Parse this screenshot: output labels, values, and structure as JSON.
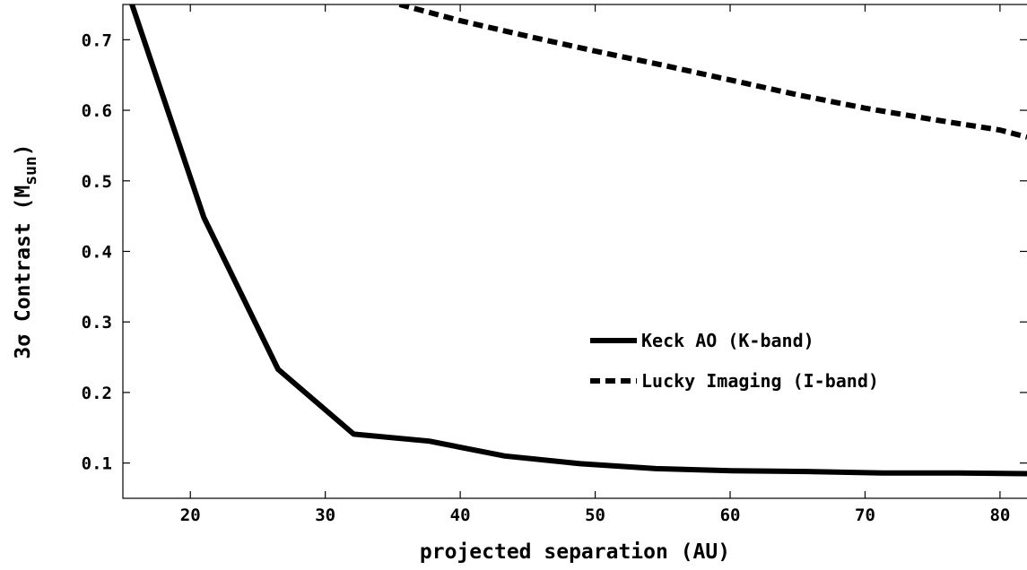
{
  "chart_data": {
    "type": "line",
    "title": "",
    "xlabel": "projected separation (AU)",
    "ylabel": {
      "prefix": "3σ Contrast (M",
      "subscript": "sun",
      "suffix": ")"
    },
    "xlim": [
      15,
      82
    ],
    "ylim": [
      0.05,
      0.75
    ],
    "xticks": [
      20,
      30,
      40,
      50,
      60,
      70,
      80
    ],
    "xtick_labels": [
      "20",
      "30",
      "40",
      "50",
      "60",
      "70",
      "80"
    ],
    "yticks": [
      0.1,
      0.2,
      0.3,
      0.4,
      0.5,
      0.6,
      0.7
    ],
    "ytick_labels": [
      "0.1",
      "0.2",
      "0.3",
      "0.4",
      "0.5",
      "0.6",
      "0.7"
    ],
    "grid": false,
    "legend_position": "center-right",
    "series": [
      {
        "name": "Keck AO (K-band)",
        "style": "solid",
        "color": "#000000",
        "x": [
          15.5,
          21,
          26.5,
          32.1,
          37.7,
          43.3,
          48.9,
          54.5,
          60.1,
          65.7,
          71.3,
          76.9,
          82
        ],
        "y": [
          0.76,
          0.448,
          0.233,
          0.141,
          0.131,
          0.11,
          0.099,
          0.092,
          0.089,
          0.088,
          0.086,
          0.086,
          0.085
        ]
      },
      {
        "name": "Lucky Imaging (I-band)",
        "style": "dashed",
        "color": "#000000",
        "x": [
          35.5,
          40,
          45,
          50,
          55,
          60,
          65,
          70,
          75,
          80,
          82
        ],
        "y": [
          0.75,
          0.727,
          0.705,
          0.684,
          0.664,
          0.643,
          0.622,
          0.603,
          0.587,
          0.572,
          0.562
        ]
      }
    ]
  }
}
